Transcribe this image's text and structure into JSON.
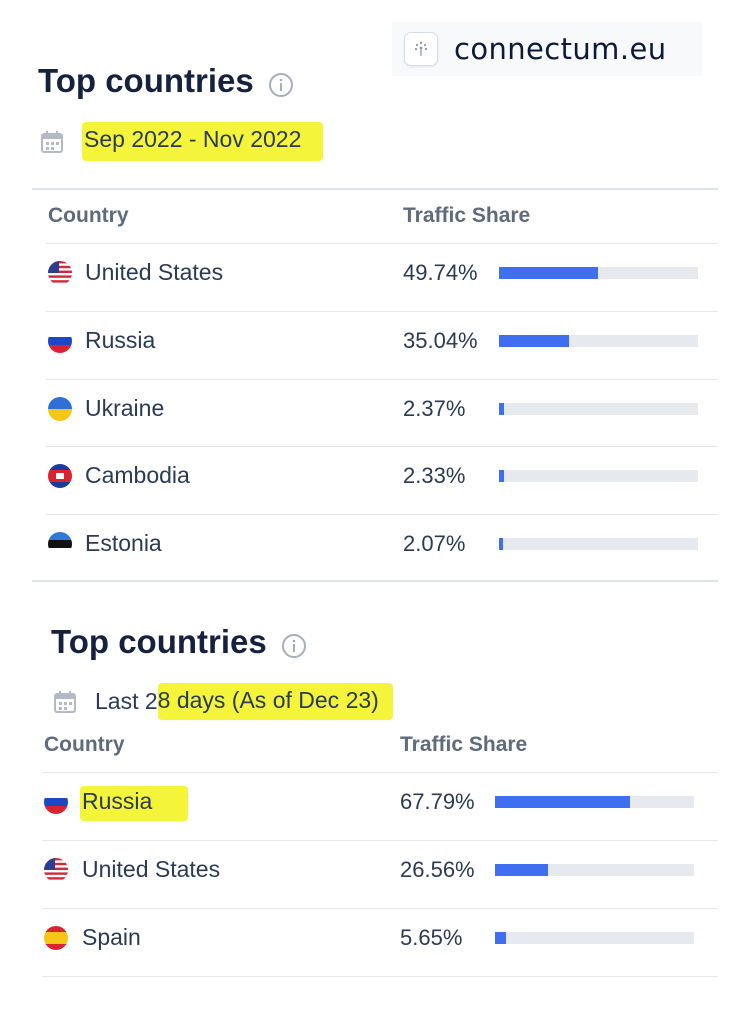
{
  "logo": {
    "text": "connectum.eu",
    "mark": "logo-glyph"
  },
  "panels": [
    {
      "title": "Top countries",
      "date_range": "Sep 2022 - Nov 2022",
      "date_prefix": "",
      "col_country": "Country",
      "col_share": "Traffic Share",
      "rows": [
        {
          "country": "United States",
          "share": "49.74%",
          "share_value": 49.74,
          "flag": "us"
        },
        {
          "country": "Russia",
          "share": "35.04%",
          "share_value": 35.04,
          "flag": "ru"
        },
        {
          "country": "Ukraine",
          "share": "2.37%",
          "share_value": 2.37,
          "flag": "ua"
        },
        {
          "country": "Cambodia",
          "share": "2.33%",
          "share_value": 2.33,
          "flag": "kh"
        },
        {
          "country": "Estonia",
          "share": "2.07%",
          "share_value": 2.07,
          "flag": "ee"
        }
      ]
    },
    {
      "title": "Top countries",
      "date_prefix": "Last 2",
      "date_range": "8 days (As of Dec 23)",
      "col_country": "Country",
      "col_share": "Traffic Share",
      "rows": [
        {
          "country": "Russia",
          "share": "67.79%",
          "share_value": 67.79,
          "flag": "ru"
        },
        {
          "country": "United States",
          "share": "26.56%",
          "share_value": 26.56,
          "flag": "us"
        },
        {
          "country": "Spain",
          "share": "5.65%",
          "share_value": 5.65,
          "flag": "es"
        }
      ]
    }
  ],
  "colors": {
    "bar": "#3f6ff0",
    "track": "#e6e9ee",
    "highlight": "#f4f53a"
  }
}
